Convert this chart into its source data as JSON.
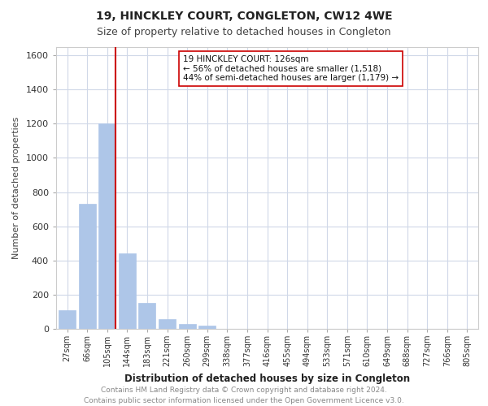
{
  "title": "19, HINCKLEY COURT, CONGLETON, CW12 4WE",
  "subtitle": "Size of property relative to detached houses in Congleton",
  "xlabel": "Distribution of detached houses by size in Congleton",
  "ylabel": "Number of detached properties",
  "bin_labels": [
    "27sqm",
    "66sqm",
    "105sqm",
    "144sqm",
    "183sqm",
    "221sqm",
    "260sqm",
    "299sqm",
    "338sqm",
    "377sqm",
    "416sqm",
    "455sqm",
    "494sqm",
    "533sqm",
    "571sqm",
    "610sqm",
    "649sqm",
    "688sqm",
    "727sqm",
    "766sqm",
    "805sqm"
  ],
  "bar_values": [
    110,
    730,
    1200,
    440,
    150,
    55,
    30,
    20,
    0,
    0,
    0,
    0,
    0,
    0,
    0,
    0,
    0,
    0,
    0,
    0,
    0
  ],
  "bar_color": "#aec6e8",
  "bar_edge_color": "#aec6e8",
  "vline_pos": 2.43,
  "vline_color": "#cc0000",
  "annotation_text": "19 HINCKLEY COURT: 126sqm\n← 56% of detached houses are smaller (1,518)\n44% of semi-detached houses are larger (1,179) →",
  "annotation_box_color": "#ffffff",
  "annotation_box_edge": "#cc0000",
  "ylim": [
    0,
    1650
  ],
  "yticks": [
    0,
    200,
    400,
    600,
    800,
    1000,
    1200,
    1400,
    1600
  ],
  "footer_text": "Contains HM Land Registry data © Crown copyright and database right 2024.\nContains public sector information licensed under the Open Government Licence v3.0.",
  "background_color": "#ffffff",
  "grid_color": "#d0d8e8"
}
